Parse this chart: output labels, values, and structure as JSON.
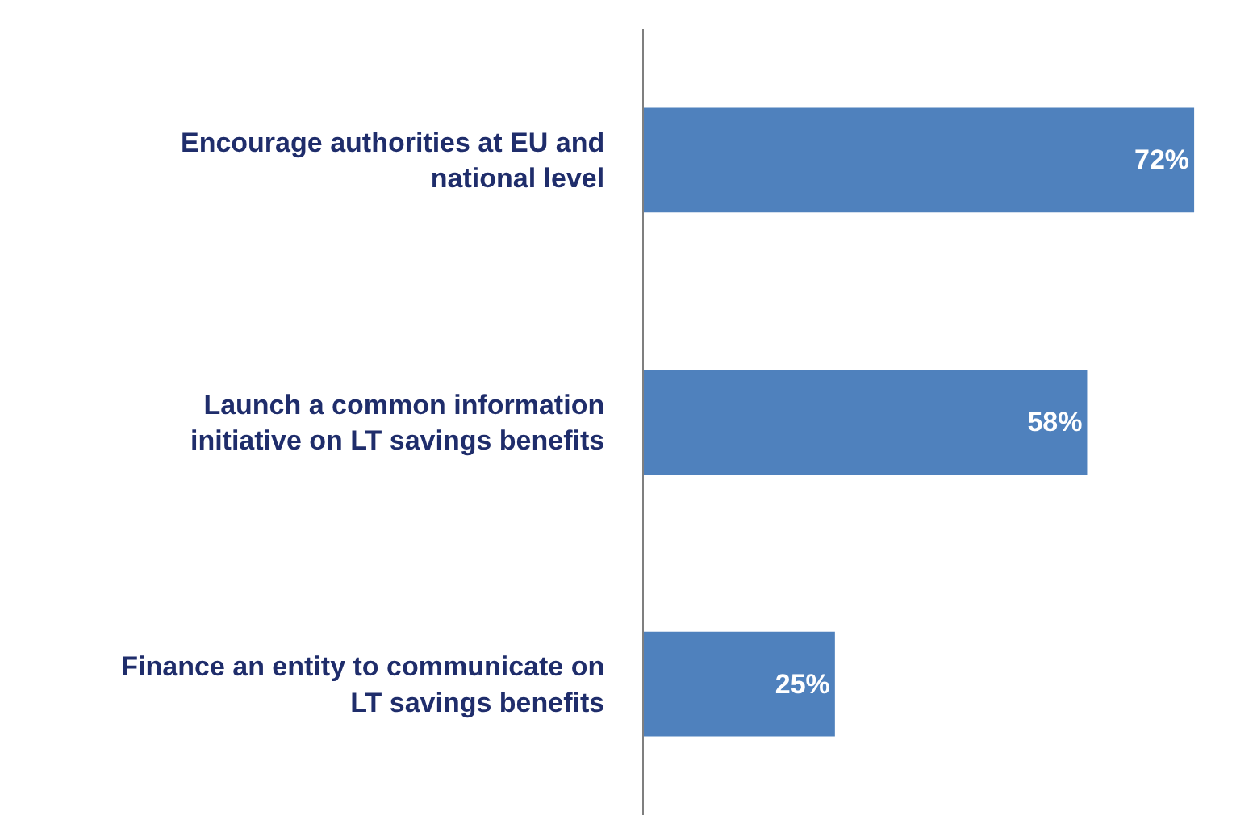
{
  "chart_data": {
    "type": "bar",
    "orientation": "horizontal",
    "categories": [
      "Encourage authorities at EU and national level",
      "Launch a common information initiative on LT savings benefits",
      "Finance an entity to communicate on LT savings benefits"
    ],
    "values": [
      72,
      58,
      25
    ],
    "value_labels": [
      "72%",
      "58%",
      "25%"
    ],
    "color": "#4f81bd",
    "tick_labels": "y",
    "grid": false
  }
}
